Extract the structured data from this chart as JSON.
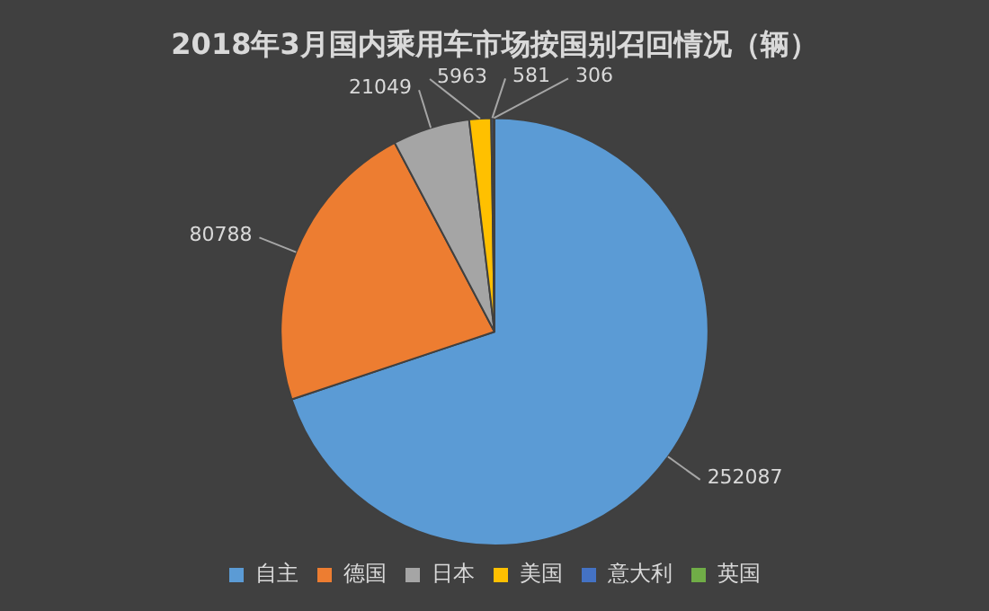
{
  "chart_data": {
    "type": "pie",
    "title": "2018年3月国内乘用车市场按国别召回情况（辆）",
    "categories": [
      "自主",
      "德国",
      "日本",
      "美国",
      "意大利",
      "英国"
    ],
    "values": [
      252087,
      80788,
      21049,
      5963,
      581,
      306
    ],
    "colors": [
      "#5b9bd5",
      "#ed7d31",
      "#a5a5a5",
      "#ffc000",
      "#4472c4",
      "#70ad47"
    ],
    "data_labels": true,
    "legend": "bottom"
  }
}
